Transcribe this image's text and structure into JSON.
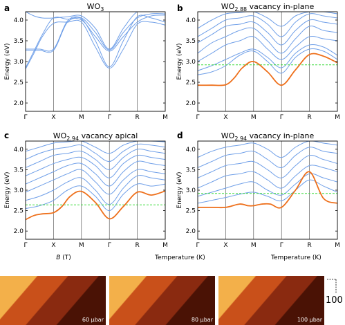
{
  "figure": {
    "colors": {
      "band": "#6f9fe8",
      "defect_band": "#ee6f1a",
      "fermi_level": "#3ddc3d",
      "axis": "#000000",
      "text": "#000000"
    },
    "bottom_xlabels": {
      "left": "B (T)",
      "right_a": "Temperature (K)",
      "right_b": "Temperature (K)"
    },
    "strips": [
      {
        "label": "60 μbar"
      },
      {
        "label": "80 μbar"
      },
      {
        "label": "100 μbar"
      }
    ],
    "scale_tick_label": "100"
  },
  "chart_data": [
    {
      "panel": "a",
      "type": "line",
      "title": "WO3",
      "title_base": "WO",
      "title_sub": "3",
      "title_suffix": "",
      "ylabel": "Energy (eV)",
      "ylim": [
        1.8,
        4.2
      ],
      "yticks": [
        2.0,
        2.5,
        3.0,
        3.5,
        4.0
      ],
      "ytick_labels": [
        "2.0",
        "2.5",
        "3.0",
        "3.5",
        "4.0"
      ],
      "x_tick_positions": [
        0,
        1,
        2,
        3,
        4,
        5
      ],
      "x_tick_labels": [
        "Γ",
        "X",
        "M",
        "Γ",
        "R",
        "M"
      ],
      "x_vlines": [
        1,
        2,
        3,
        4
      ],
      "fermi_level": null,
      "series": [
        {
          "role": "band",
          "x": [
            0,
            0.3,
            0.6,
            1,
            1.5,
            2,
            2.5,
            3,
            3.5,
            4,
            4.5,
            5
          ],
          "y": [
            2.82,
            3.2,
            3.6,
            3.92,
            3.95,
            3.95,
            3.35,
            2.84,
            3.3,
            3.9,
            3.95,
            3.88
          ]
        },
        {
          "role": "band",
          "x": [
            0,
            0.3,
            0.6,
            1,
            1.5,
            2,
            2.5,
            3,
            3.5,
            4,
            4.5,
            5
          ],
          "y": [
            2.85,
            3.25,
            3.65,
            4.05,
            4.02,
            4.03,
            3.5,
            2.87,
            3.5,
            4.08,
            4.05,
            3.95
          ]
        },
        {
          "role": "band",
          "x": [
            0,
            0.5,
            1,
            1.5,
            2,
            2.5,
            3,
            3.5,
            4,
            4.5,
            5
          ],
          "y": [
            3.27,
            3.27,
            3.27,
            3.95,
            4.0,
            3.6,
            3.25,
            3.6,
            3.95,
            4.1,
            4.12
          ]
        },
        {
          "role": "band",
          "x": [
            0,
            0.5,
            1,
            1.5,
            2,
            2.5,
            3,
            3.5,
            4,
            4.5,
            5
          ],
          "y": [
            3.3,
            3.3,
            3.3,
            3.98,
            4.05,
            3.7,
            3.28,
            3.7,
            4.05,
            4.15,
            4.15
          ]
        },
        {
          "role": "band",
          "x": [
            0,
            0.3,
            0.6,
            1,
            1.5,
            2,
            2.5,
            3,
            3.5,
            4,
            4.5,
            5
          ],
          "y": [
            4.2,
            4.1,
            4.05,
            4.05,
            4.08,
            4.1,
            3.8,
            3.3,
            3.8,
            4.2,
            4.2,
            4.2
          ]
        }
      ]
    },
    {
      "panel": "b",
      "type": "line",
      "title": "WO2.88 vacancy in-plane",
      "title_base": "WO",
      "title_sub": "2.88",
      "title_suffix": " vacancy in-plane",
      "ylabel": "Energy (eV)",
      "ylim": [
        1.8,
        4.2
      ],
      "yticks": [
        2.0,
        2.5,
        3.0,
        3.5,
        4.0
      ],
      "ytick_labels": [
        "2.0",
        "2.5",
        "3.0",
        "3.5",
        "4.0"
      ],
      "x_tick_positions": [
        0,
        1,
        2,
        3,
        4,
        5
      ],
      "x_tick_labels": [
        "Γ",
        "X",
        "M",
        "Γ",
        "R",
        "M"
      ],
      "x_vlines": [
        1,
        2,
        3,
        4
      ],
      "fermi_level": 2.92,
      "series": [
        {
          "role": "defect",
          "x": [
            0,
            0.5,
            1,
            1.3,
            1.6,
            2,
            2.5,
            3,
            3.5,
            4,
            4.5,
            5
          ],
          "y": [
            2.43,
            2.43,
            2.44,
            2.6,
            2.85,
            3.0,
            2.75,
            2.43,
            2.8,
            3.17,
            3.13,
            2.97
          ]
        },
        {
          "role": "band",
          "x": [
            0,
            0.5,
            1,
            1.5,
            2,
            2.5,
            3,
            3.5,
            4,
            4.5,
            5
          ],
          "y": [
            2.68,
            2.75,
            2.9,
            3.15,
            3.25,
            3.0,
            2.72,
            3.1,
            3.3,
            3.25,
            3.05
          ]
        },
        {
          "role": "band",
          "x": [
            0,
            0.5,
            1,
            1.5,
            2,
            2.5,
            3,
            3.5,
            4,
            4.5,
            5
          ],
          "y": [
            2.78,
            2.9,
            3.05,
            3.2,
            3.3,
            3.1,
            2.85,
            3.2,
            3.4,
            3.35,
            3.15
          ]
        },
        {
          "role": "band",
          "x": [
            0,
            0.5,
            1,
            1.5,
            2,
            2.5,
            3,
            3.5,
            4,
            4.5,
            5
          ],
          "y": [
            3.0,
            3.2,
            3.4,
            3.5,
            3.6,
            3.3,
            3.05,
            3.35,
            3.6,
            3.55,
            3.5
          ]
        },
        {
          "role": "band",
          "x": [
            0,
            0.5,
            1,
            1.5,
            2,
            2.5,
            3,
            3.5,
            4,
            4.5,
            5
          ],
          "y": [
            3.2,
            3.45,
            3.6,
            3.75,
            3.8,
            3.5,
            3.2,
            3.55,
            3.85,
            3.75,
            3.7
          ]
        },
        {
          "role": "band",
          "x": [
            0,
            0.5,
            1,
            1.5,
            2,
            2.5,
            3,
            3.5,
            4,
            4.5,
            5
          ],
          "y": [
            3.45,
            3.65,
            3.85,
            3.9,
            3.95,
            3.7,
            3.4,
            3.75,
            4.0,
            3.95,
            3.9
          ]
        },
        {
          "role": "band",
          "x": [
            0,
            0.5,
            1,
            1.5,
            2,
            2.5,
            3,
            3.5,
            4,
            4.5,
            5
          ],
          "y": [
            3.6,
            3.8,
            4.0,
            4.05,
            4.1,
            3.9,
            3.6,
            3.95,
            4.15,
            4.1,
            4.05
          ]
        },
        {
          "role": "band",
          "x": [
            0,
            0.5,
            1,
            1.5,
            2,
            2.5,
            3,
            3.5,
            4,
            4.5,
            5
          ],
          "y": [
            3.8,
            4.0,
            4.15,
            4.18,
            4.2,
            4.05,
            3.85,
            4.1,
            4.2,
            4.2,
            4.15
          ]
        }
      ]
    },
    {
      "panel": "c",
      "type": "line",
      "title": "WO2.94 vacancy apical",
      "title_base": "WO",
      "title_sub": "2.94",
      "title_suffix": " vacancy apical",
      "ylabel": "Energy (eV)",
      "ylim": [
        1.8,
        4.2
      ],
      "yticks": [
        2.0,
        2.5,
        3.0,
        3.5,
        4.0
      ],
      "ytick_labels": [
        "2.0",
        "2.5",
        "3.0",
        "3.5",
        "4.0"
      ],
      "x_tick_positions": [
        0,
        1,
        2,
        3,
        4,
        5
      ],
      "x_tick_labels": [
        "Γ",
        "X",
        "M",
        "Γ",
        "R",
        "M"
      ],
      "x_vlines": [
        1,
        2,
        3,
        4
      ],
      "fermi_level": 2.64,
      "series": [
        {
          "role": "defect",
          "x": [
            0,
            0.3,
            0.6,
            1,
            1.3,
            1.6,
            2,
            2.5,
            3,
            3.5,
            4,
            4.5,
            5
          ],
          "y": [
            2.28,
            2.38,
            2.42,
            2.45,
            2.6,
            2.85,
            2.97,
            2.7,
            2.3,
            2.6,
            2.95,
            2.88,
            2.98
          ]
        },
        {
          "role": "band",
          "x": [
            0,
            0.5,
            1,
            1.5,
            2,
            2.5,
            3,
            3.5,
            4,
            4.5,
            5
          ],
          "y": [
            2.55,
            2.62,
            2.75,
            3.0,
            3.1,
            2.85,
            2.5,
            2.9,
            3.15,
            3.1,
            3.15
          ]
        },
        {
          "role": "band",
          "x": [
            0,
            0.5,
            1,
            1.5,
            2,
            2.5,
            3,
            3.5,
            4,
            4.5,
            5
          ],
          "y": [
            2.75,
            2.85,
            3.0,
            3.2,
            3.3,
            3.0,
            2.65,
            3.05,
            3.35,
            3.3,
            3.25
          ]
        },
        {
          "role": "band",
          "x": [
            0,
            0.5,
            1,
            1.5,
            2,
            2.5,
            3,
            3.5,
            4,
            4.5,
            5
          ],
          "y": [
            2.95,
            3.1,
            3.25,
            3.4,
            3.5,
            3.2,
            2.9,
            3.25,
            3.5,
            3.45,
            3.4
          ]
        },
        {
          "role": "band",
          "x": [
            0,
            0.5,
            1,
            1.5,
            2,
            2.5,
            3,
            3.5,
            4,
            4.5,
            5
          ],
          "y": [
            3.15,
            3.3,
            3.45,
            3.6,
            3.65,
            3.4,
            3.1,
            3.45,
            3.7,
            3.65,
            3.6
          ]
        },
        {
          "role": "band",
          "x": [
            0,
            0.5,
            1,
            1.5,
            2,
            2.5,
            3,
            3.5,
            4,
            4.5,
            5
          ],
          "y": [
            3.35,
            3.5,
            3.65,
            3.75,
            3.8,
            3.6,
            3.3,
            3.65,
            3.85,
            3.8,
            3.75
          ]
        },
        {
          "role": "band",
          "x": [
            0,
            0.5,
            1,
            1.5,
            2,
            2.5,
            3,
            3.5,
            4,
            4.5,
            5
          ],
          "y": [
            3.55,
            3.7,
            3.85,
            3.9,
            3.95,
            3.75,
            3.5,
            3.8,
            4.0,
            3.95,
            3.9
          ]
        },
        {
          "role": "band",
          "x": [
            0,
            0.5,
            1,
            1.5,
            2,
            2.5,
            3,
            3.5,
            4,
            4.5,
            5
          ],
          "y": [
            3.75,
            3.9,
            4.0,
            4.05,
            4.1,
            3.9,
            3.7,
            3.95,
            4.12,
            4.1,
            4.05
          ]
        },
        {
          "role": "band",
          "x": [
            0,
            0.5,
            1,
            1.5,
            2,
            2.5,
            3,
            3.5,
            4,
            4.5,
            5
          ],
          "y": [
            3.95,
            4.05,
            4.15,
            4.18,
            4.2,
            4.05,
            3.9,
            4.1,
            4.2,
            4.2,
            4.18
          ]
        }
      ]
    },
    {
      "panel": "d",
      "type": "line",
      "title": "WO2.94 vacancy in-plane",
      "title_base": "WO",
      "title_sub": "2.94",
      "title_suffix": " vacancy in-plane",
      "ylabel": "Energy (eV)",
      "ylim": [
        1.8,
        4.2
      ],
      "yticks": [
        2.0,
        2.5,
        3.0,
        3.5,
        4.0
      ],
      "ytick_labels": [
        "2.0",
        "2.5",
        "3.0",
        "3.5",
        "4.0"
      ],
      "x_tick_positions": [
        0,
        1,
        2,
        3,
        4,
        5
      ],
      "x_tick_labels": [
        "Γ",
        "X",
        "M",
        "Γ",
        "R",
        "M"
      ],
      "x_vlines": [
        1,
        2,
        3,
        4
      ],
      "fermi_level": 2.92,
      "series": [
        {
          "role": "defect",
          "x": [
            0,
            0.5,
            1,
            1.5,
            1.8,
            2,
            2.3,
            2.6,
            3,
            3.5,
            4,
            4.5,
            5
          ],
          "y": [
            2.58,
            2.58,
            2.58,
            2.66,
            2.62,
            2.62,
            2.66,
            2.66,
            2.58,
            3.0,
            3.45,
            2.8,
            2.68
          ]
        },
        {
          "role": "band",
          "x": [
            0,
            0.5,
            1,
            1.5,
            2,
            2.5,
            3,
            3.5,
            4,
            4.5,
            5
          ],
          "y": [
            2.68,
            2.75,
            2.82,
            2.9,
            2.95,
            2.85,
            2.74,
            3.0,
            3.25,
            3.1,
            2.95
          ]
        },
        {
          "role": "band",
          "x": [
            0,
            0.5,
            1,
            1.5,
            2,
            2.5,
            3,
            3.5,
            4,
            4.5,
            5
          ],
          "y": [
            2.85,
            2.95,
            3.05,
            3.15,
            3.2,
            3.0,
            2.88,
            3.15,
            3.4,
            3.3,
            3.2
          ]
        },
        {
          "role": "band",
          "x": [
            0,
            0.5,
            1,
            1.5,
            2,
            2.5,
            3,
            3.5,
            4,
            4.5,
            5
          ],
          "y": [
            3.05,
            3.2,
            3.35,
            3.4,
            3.45,
            3.25,
            3.05,
            3.35,
            3.6,
            3.55,
            3.45
          ]
        },
        {
          "role": "band",
          "x": [
            0,
            0.5,
            1,
            1.5,
            2,
            2.5,
            3,
            3.5,
            4,
            4.5,
            5
          ],
          "y": [
            3.3,
            3.45,
            3.6,
            3.65,
            3.7,
            3.5,
            3.3,
            3.6,
            3.85,
            3.75,
            3.65
          ]
        },
        {
          "role": "band",
          "x": [
            0,
            0.5,
            1,
            1.5,
            2,
            2.5,
            3,
            3.5,
            4,
            4.5,
            5
          ],
          "y": [
            3.55,
            3.7,
            3.85,
            3.9,
            3.95,
            3.75,
            3.55,
            3.85,
            4.05,
            3.95,
            3.9
          ]
        },
        {
          "role": "band",
          "x": [
            0,
            0.5,
            1,
            1.5,
            2,
            2.5,
            3,
            3.5,
            4,
            4.5,
            5
          ],
          "y": [
            3.8,
            3.95,
            4.05,
            4.1,
            4.15,
            4.0,
            3.8,
            4.05,
            4.2,
            4.15,
            4.1
          ]
        }
      ]
    }
  ]
}
